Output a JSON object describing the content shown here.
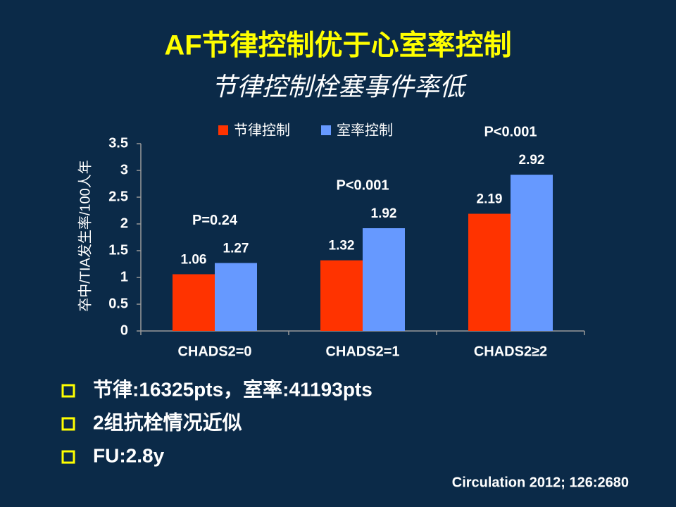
{
  "chart_data": {
    "type": "bar",
    "title": "AF节律控制优于心室率控制",
    "subtitle": "节律控制栓塞事件率低",
    "y_label": "卒中/TIA发生率/100人年",
    "categories": [
      "CHADS2=0",
      "CHADS2=1",
      "CHADS2≥2"
    ],
    "series": [
      {
        "name": "节律控制",
        "color": "#ff3300",
        "values": [
          1.06,
          1.32,
          2.19
        ]
      },
      {
        "name": "室率控制",
        "color": "#6699ff",
        "values": [
          1.27,
          1.92,
          2.92
        ]
      }
    ],
    "annotations": [
      "P=0.24",
      "P<0.001",
      "P<0.001"
    ],
    "ylim": [
      0,
      3.5
    ],
    "yticks": [
      0,
      0.5,
      1,
      1.5,
      2,
      2.5,
      3,
      3.5
    ],
    "grid": false
  },
  "bullets": [
    "节律:16325pts，室率:41193pts",
    "2组抗栓情况近似",
    "FU:2.8y"
  ],
  "source": "Circulation 2012; 126:2680"
}
